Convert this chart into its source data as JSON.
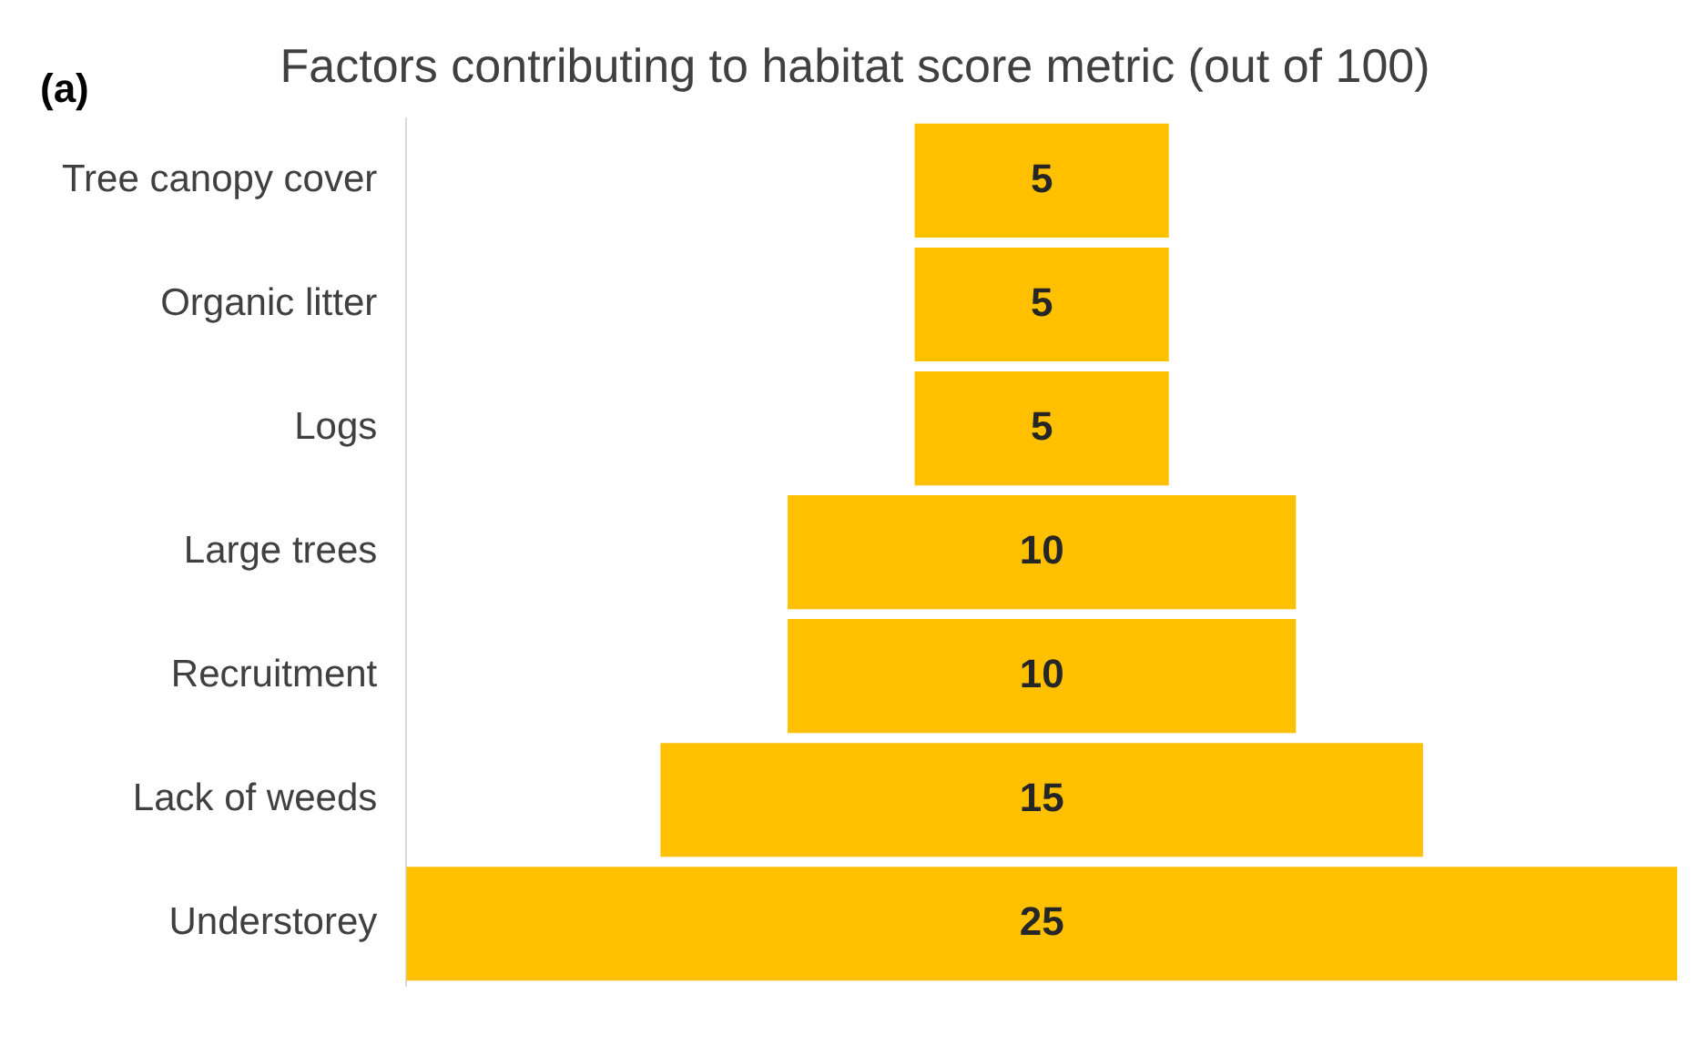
{
  "chart_data": {
    "type": "other",
    "title": "Factors contributing to habitat score metric (out of 100)",
    "annotations": [
      "(a)"
    ],
    "categories": [
      "Tree canopy cover",
      "Organic litter",
      "Logs",
      "Large trees",
      "Recruitment",
      "Lack of weeds",
      "Understorey"
    ],
    "values": [
      5,
      5,
      5,
      10,
      10,
      15,
      25
    ],
    "color": "#ffc000",
    "data_labels": true,
    "legend": false
  }
}
